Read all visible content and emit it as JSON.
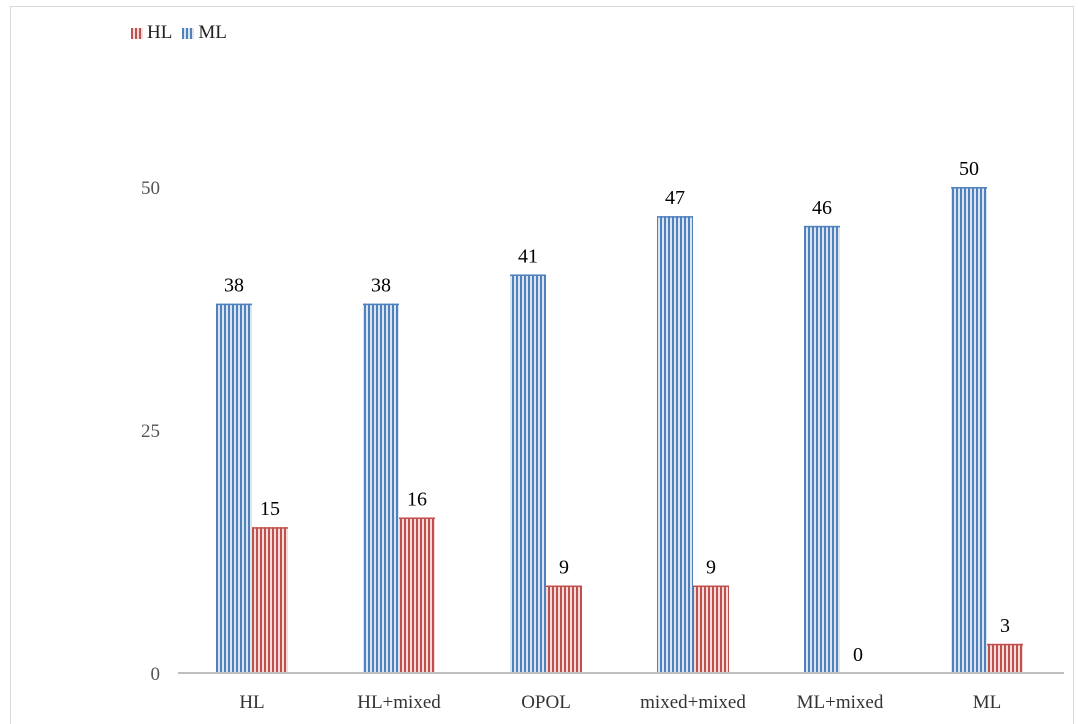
{
  "chart_data": {
    "type": "bar",
    "categories": [
      "HL",
      "HL+mixed",
      "OPOL",
      "mixed+mixed",
      "ML+mixed",
      "ML"
    ],
    "series": [
      {
        "name": "ML",
        "values": [
          38,
          38,
          41,
          47,
          46,
          50
        ],
        "color": "#4f81bd"
      },
      {
        "name": "HL",
        "values": [
          15,
          16,
          9,
          9,
          0,
          3
        ],
        "color": "#c0504d"
      }
    ],
    "legend_order": [
      "HL",
      "ML"
    ],
    "legend_position": "top-left",
    "ylim": [
      0,
      50
    ],
    "yticks": [
      "0",
      "25",
      "50"
    ],
    "grid": false,
    "bar_pattern": "vertical-stripes",
    "title": "",
    "xlabel": "",
    "ylabel": ""
  }
}
